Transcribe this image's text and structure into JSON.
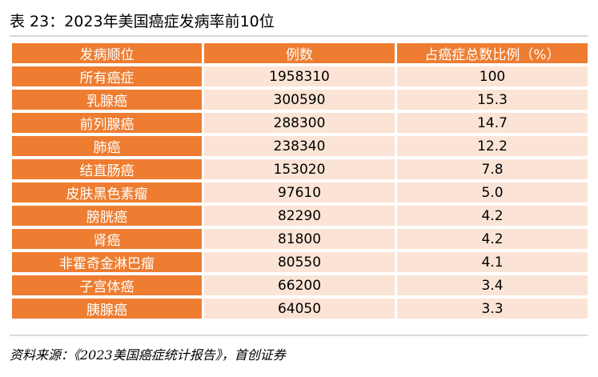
{
  "title": "表 23：2023年美国癌症发病率前10位",
  "table": {
    "headers": [
      "发病顺位",
      "例数",
      "占癌症总数比例（%）"
    ],
    "rows": [
      [
        "所有癌症",
        "1958310",
        "100"
      ],
      [
        "乳腺癌",
        "300590",
        "15.3"
      ],
      [
        "前列腺癌",
        "288300",
        "14.7"
      ],
      [
        "肺癌",
        "238340",
        "12.2"
      ],
      [
        "结直肠癌",
        "153020",
        "7.8"
      ],
      [
        "皮肤黑色素瘤",
        "97610",
        "5.0"
      ],
      [
        "膀胱癌",
        "82290",
        "4.2"
      ],
      [
        "肾癌",
        "81800",
        "4.2"
      ],
      [
        "非霍奇金淋巴瘤",
        "80550",
        "4.1"
      ],
      [
        "子宫体癌",
        "66200",
        "3.4"
      ],
      [
        "胰腺癌",
        "64050",
        "3.3"
      ]
    ]
  },
  "source": "资料来源：《2023美国癌症统计报告》，首创证券",
  "colors": {
    "header_fill": "#ee7d31",
    "cell_fill": "#fbe4d5",
    "header_text": "#ffffff"
  }
}
